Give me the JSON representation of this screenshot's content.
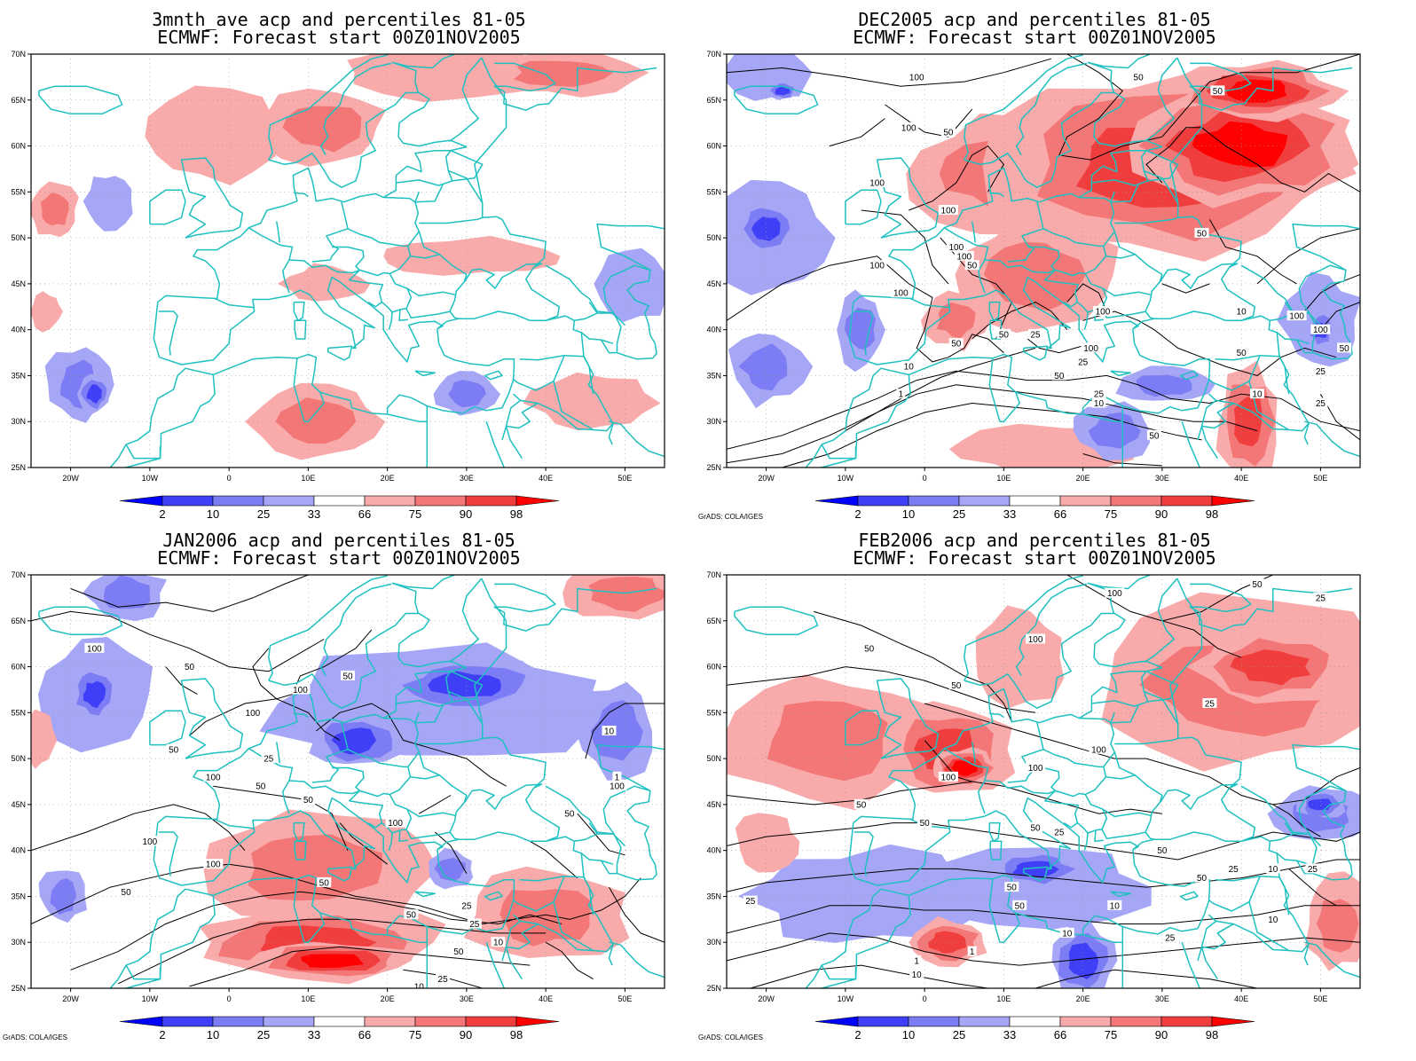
{
  "colors": {
    "background": "#ffffff",
    "coast": "#1fc0c0",
    "contour": "#000000",
    "grid": "#999999",
    "bins": [
      "#0000ff",
      "#3f3ff7",
      "#7c7cf4",
      "#a6a6f6",
      "#ffffff",
      "#f9aaaa",
      "#f47777",
      "#f03e3e",
      "#ff0000"
    ]
  },
  "axes": {
    "lat_labels": [
      "70N",
      "65N",
      "60N",
      "55N",
      "50N",
      "45N",
      "40N",
      "35N",
      "30N",
      "25N"
    ],
    "lon_labels": [
      "20W",
      "10W",
      "0",
      "10E",
      "20E",
      "30E",
      "40E",
      "50E"
    ]
  },
  "colorbar": {
    "labels": [
      "2",
      "10",
      "25",
      "33",
      "66",
      "75",
      "90",
      "98"
    ]
  },
  "credit": "GrADS: COLA/IGES",
  "panels": [
    {
      "title1": "3mnth_ave acp and percentiles 81-05",
      "title2": "ECMWF: Forecast start 00Z01NOV2005",
      "credit": "",
      "contour_labels": []
    },
    {
      "title1": "DEC2005 acp and percentiles 81-05",
      "title2": "ECMWF: Forecast start 00Z01NOV2005",
      "credit": "GrADS: COLA/IGES",
      "contour_labels": [
        "100",
        "50",
        "50",
        "100",
        "50",
        "100",
        "100",
        "100",
        "50",
        "100",
        "50",
        "100",
        "100",
        "100",
        "100",
        "50",
        "50",
        "25",
        "10",
        "100",
        "100",
        "50",
        "25",
        "10",
        "1",
        "50",
        "25",
        "10",
        "50",
        "25",
        "10",
        "25",
        "50"
      ]
    },
    {
      "title1": "JAN2006 acp and percentiles 81-05",
      "title2": "ECMWF: Forecast start 00Z01NOV2005",
      "credit": "GrADS: COLA/IGES",
      "contour_labels": [
        "50",
        "100",
        "50",
        "100",
        "100",
        "50",
        "25",
        "100",
        "50",
        "50",
        "100",
        "100",
        "50",
        "100",
        "50",
        "50",
        "25",
        "25",
        "10",
        "50",
        "25",
        "10",
        "10",
        "1",
        "50",
        "100"
      ]
    },
    {
      "title1": "FEB2006 acp and percentiles 81-05",
      "title2": "ECMWF: Forecast start 00Z01NOV2005",
      "credit": "GrADS: COLA/IGES",
      "contour_labels": [
        "50",
        "25",
        "100",
        "100",
        "50",
        "50",
        "25",
        "100",
        "100",
        "100",
        "50",
        "50",
        "50",
        "25",
        "50",
        "50",
        "25",
        "10",
        "50",
        "25",
        "10",
        "50",
        "10",
        "25",
        "25",
        "10",
        "1",
        "1",
        "10"
      ]
    }
  ]
}
